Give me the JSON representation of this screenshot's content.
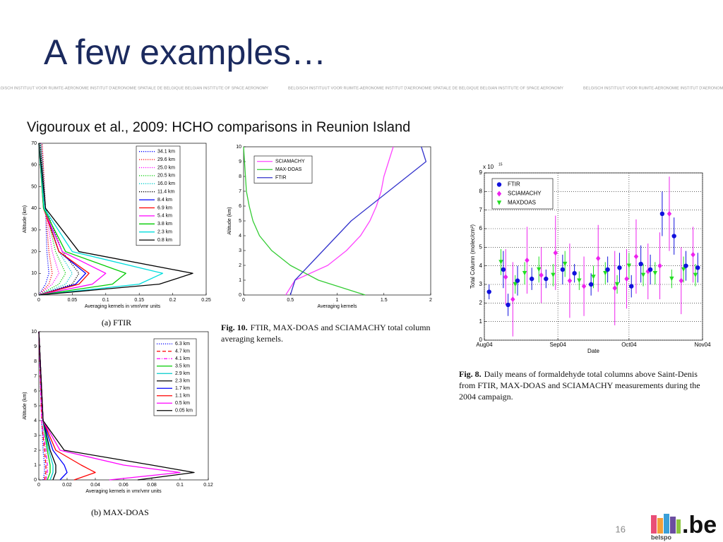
{
  "header": {
    "title": "A few examples…",
    "banner": "BELGISCH INSTITUUT VOOR RUIMTE-AERONOMIE INSTITUT D'AERONOMIE SPATIALE DE BELGIQUE BELGIAN INSTITUTE OF SPACE AERONOMY"
  },
  "subtitle": "Vigouroux et al., 2009: HCHO comparisons in Reunion Island",
  "figures": [
    {
      "type": "profile",
      "xlabel": "Averaging kernels in vmr/vmr units",
      "ylabel": "Altitude (km)",
      "caption_label": "(a) FTIR",
      "xlim": [
        0,
        0.25
      ],
      "xticks": [
        0,
        0.05,
        0.1,
        0.15,
        0.2,
        0.25
      ],
      "ylim": [
        0,
        70
      ],
      "yticks": [
        0,
        10,
        20,
        30,
        40,
        50,
        60,
        70
      ],
      "levels": [
        0,
        5,
        10,
        20,
        40,
        70
      ],
      "series": [
        {
          "name": "34.1 km",
          "color": "#0000ff",
          "dash": "dotted",
          "values": [
            0,
            0.01,
            0.015,
            0.012,
            0.01,
            0.005
          ]
        },
        {
          "name": "29.6 km",
          "color": "#ff0000",
          "dash": "dotted",
          "values": [
            0,
            0.015,
            0.02,
            0.015,
            0.01,
            0.005
          ]
        },
        {
          "name": "25.0 km",
          "color": "#ff00ff",
          "dash": "dotted",
          "values": [
            0,
            0.02,
            0.03,
            0.02,
            0.01,
            0.003
          ]
        },
        {
          "name": "20.5 km",
          "color": "#00cc00",
          "dash": "dotted",
          "values": [
            0,
            0.03,
            0.04,
            0.025,
            0.01,
            0.003
          ]
        },
        {
          "name": "16.0 km",
          "color": "#00cccc",
          "dash": "dotted",
          "values": [
            0,
            0.04,
            0.05,
            0.03,
            0.01,
            0.002
          ]
        },
        {
          "name": "11.4 km",
          "color": "#000000",
          "dash": "dotted",
          "values": [
            0,
            0.05,
            0.06,
            0.035,
            0.01,
            0.002
          ]
        },
        {
          "name": "8.4 km",
          "color": "#0000ff",
          "dash": "solid",
          "values": [
            0,
            0.055,
            0.07,
            0.03,
            0.008,
            0
          ]
        },
        {
          "name": "6.9 km",
          "color": "#ff0000",
          "dash": "solid",
          "values": [
            0,
            0.06,
            0.075,
            0.03,
            0.007,
            0
          ]
        },
        {
          "name": "5.4 km",
          "color": "#ff00ff",
          "dash": "solid",
          "values": [
            0,
            0.08,
            0.1,
            0.035,
            0.007,
            0
          ]
        },
        {
          "name": "3.8 km",
          "color": "#00cc00",
          "dash": "solid",
          "values": [
            0,
            0.11,
            0.13,
            0.04,
            0.007,
            0
          ]
        },
        {
          "name": "2.3 km",
          "color": "#00dddd",
          "dash": "solid",
          "values": [
            0,
            0.15,
            0.185,
            0.05,
            0.008,
            0
          ]
        },
        {
          "name": "0.8 km",
          "color": "#000000",
          "dash": "solid",
          "values": [
            0,
            0.18,
            0.23,
            0.06,
            0.01,
            0
          ]
        }
      ]
    },
    {
      "type": "profile",
      "xlabel": "Averaging kernels in vmr/vmr units",
      "ylabel": "Altitude (km)",
      "caption_label": "(b) MAX-DOAS",
      "xlim": [
        0,
        0.12
      ],
      "xticks": [
        0,
        0.02,
        0.04,
        0.06,
        0.08,
        0.1,
        0.12
      ],
      "ylim": [
        0,
        10
      ],
      "yticks": [
        0,
        1,
        2,
        3,
        4,
        5,
        6,
        7,
        8,
        9,
        10
      ],
      "levels": [
        0,
        0.5,
        1,
        2,
        4,
        10
      ],
      "series": [
        {
          "name": "6.3 km",
          "color": "#0000ff",
          "dash": "dotted",
          "values": [
            0.003,
            0.004,
            0.004,
            0.003,
            0.002,
            0
          ]
        },
        {
          "name": "4.7 km",
          "color": "#ff0000",
          "dash": "dashed",
          "values": [
            0.004,
            0.005,
            0.005,
            0.004,
            0.002,
            0
          ]
        },
        {
          "name": "4.1 km",
          "color": "#ff00ff",
          "dash": "dashdot",
          "values": [
            0.005,
            0.006,
            0.006,
            0.005,
            0.002,
            0
          ]
        },
        {
          "name": "3.5 km",
          "color": "#00cc00",
          "dash": "solid",
          "values": [
            0.006,
            0.008,
            0.008,
            0.006,
            0.003,
            0
          ]
        },
        {
          "name": "2.9 km",
          "color": "#00cccc",
          "dash": "solid",
          "values": [
            0.008,
            0.01,
            0.01,
            0.007,
            0.003,
            0
          ]
        },
        {
          "name": "2.3 km",
          "color": "#000000",
          "dash": "solid",
          "values": [
            0.01,
            0.012,
            0.012,
            0.008,
            0.003,
            0
          ]
        },
        {
          "name": "1.7 km",
          "color": "#0000ff",
          "dash": "solid",
          "values": [
            0.015,
            0.02,
            0.018,
            0.01,
            0.003,
            0
          ]
        },
        {
          "name": "1.1 km",
          "color": "#ff0000",
          "dash": "solid",
          "values": [
            0.025,
            0.04,
            0.03,
            0.012,
            0.003,
            0
          ]
        },
        {
          "name": "0.5 km",
          "color": "#ff00ff",
          "dash": "solid",
          "values": [
            0.05,
            0.1,
            0.06,
            0.015,
            0.003,
            0
          ]
        },
        {
          "name": "0.05 km",
          "color": "#000000",
          "dash": "solid",
          "values": [
            0.07,
            0.11,
            0.08,
            0.018,
            0.003,
            0
          ]
        }
      ]
    },
    {
      "type": "profile",
      "xlabel": "Averaging kernels",
      "ylabel": "Altitude (km)",
      "caption_label": "Fig. 10.",
      "caption": "FTIR, MAX-DOAS and SCIAMACHY total column averaging kernels.",
      "xlim": [
        0,
        2
      ],
      "xticks": [
        0,
        0.5,
        1,
        1.5,
        2
      ],
      "ylim": [
        0,
        10
      ],
      "yticks": [
        0,
        1,
        2,
        3,
        4,
        5,
        6,
        7,
        8,
        9,
        10
      ],
      "levels": [
        0,
        1,
        2,
        3,
        4,
        5,
        6,
        7,
        8,
        9,
        10
      ],
      "series": [
        {
          "name": "SCIAMACHY",
          "color": "#ff44ff",
          "dash": "solid",
          "values": [
            0.45,
            0.55,
            0.9,
            1.1,
            1.25,
            1.35,
            1.42,
            1.47,
            1.5,
            1.55,
            1.6
          ]
        },
        {
          "name": "MAX-DOAS",
          "color": "#33cc33",
          "dash": "solid",
          "values": [
            1.3,
            0.8,
            0.5,
            0.3,
            0.17,
            0.1,
            0.06,
            0.03,
            0.02,
            0.01,
            0
          ]
        },
        {
          "name": "FTIR",
          "color": "#3333cc",
          "dash": "solid",
          "values": [
            0.5,
            0.55,
            0.7,
            0.85,
            1.0,
            1.15,
            1.35,
            1.55,
            1.75,
            1.95,
            1.9
          ]
        }
      ]
    },
    {
      "type": "errorbar",
      "xlabel": "Date",
      "ylabel": "Total Column (molec/cm²)",
      "scale_label": "x 10",
      "scale_exponent": "15",
      "grid": true,
      "caption_label": "Fig. 8.",
      "caption": "Daily means of formaldehyde total columns above Saint-Denis from FTIR, MAX-DOAS and SCIAMACHY measurements during the 2004 campaign.",
      "xlim": [
        0,
        92
      ],
      "xticks": [
        {
          "value": 0,
          "label": "Aug04"
        },
        {
          "value": 31,
          "label": "Sep04"
        },
        {
          "value": 61,
          "label": "Oct04"
        },
        {
          "value": 92,
          "label": "Nov04"
        }
      ],
      "ylim": [
        0,
        9
      ],
      "yticks": [
        0,
        1,
        2,
        3,
        4,
        5,
        6,
        7,
        8,
        9
      ],
      "series": [
        {
          "name": "SCIAMACHY",
          "color": "#ee22ee",
          "marker": "diamond",
          "x": [
            9,
            12,
            18,
            24,
            30,
            36,
            42,
            48,
            55,
            60,
            64,
            69,
            74,
            78,
            83,
            88
          ],
          "values": [
            3.4,
            2.2,
            4.3,
            3.5,
            4.7,
            3.2,
            2.9,
            4.4,
            2.8,
            3.3,
            4.5,
            3.7,
            4.0,
            6.8,
            3.2,
            4.6
          ],
          "errors": [
            1.5,
            2,
            1.8,
            1.5,
            2,
            2,
            1.6,
            1.8,
            2,
            1.6,
            2,
            1.5,
            1.8,
            2,
            1.8,
            1.5
          ]
        },
        {
          "name": "MAXDOAS",
          "color": "#22dd22",
          "marker": "triangle",
          "x": [
            7,
            13,
            17,
            23,
            29,
            34,
            40,
            46,
            51,
            56,
            61,
            67,
            72,
            79,
            84,
            89
          ],
          "values": [
            4.2,
            3.0,
            3.6,
            3.8,
            3.5,
            4.1,
            3.2,
            3.4,
            3.6,
            3.0,
            4.0,
            3.5,
            3.6,
            3.3,
            3.8,
            3.5
          ],
          "errors": [
            0.7,
            0.5,
            0.6,
            0.7,
            0.6,
            0.7,
            0.5,
            0.6,
            0.6,
            0.5,
            0.7,
            0.6,
            0.6,
            0.5,
            0.7,
            0.6
          ]
        },
        {
          "name": "FTIR",
          "color": "#1111dd",
          "marker": "circle",
          "x": [
            2,
            8,
            10,
            14,
            20,
            26,
            33,
            38,
            45,
            52,
            57,
            62,
            66,
            70,
            75,
            80,
            85,
            90
          ],
          "values": [
            2.6,
            3.8,
            1.9,
            3.2,
            3.3,
            3.3,
            3.8,
            3.6,
            3.0,
            3.8,
            3.9,
            2.9,
            4.1,
            3.8,
            6.8,
            5.6,
            4.0,
            3.9
          ],
          "errors": [
            0.4,
            1,
            0.6,
            0.8,
            0.6,
            0.5,
            0.8,
            0.5,
            0.6,
            0.7,
            0.8,
            0.6,
            1,
            0.8,
            1.2,
            1,
            0.8,
            0.8
          ]
        }
      ]
    }
  ],
  "footer": {
    "page": "16",
    "logo_text": "belspo",
    "logo_brand": ".be"
  }
}
